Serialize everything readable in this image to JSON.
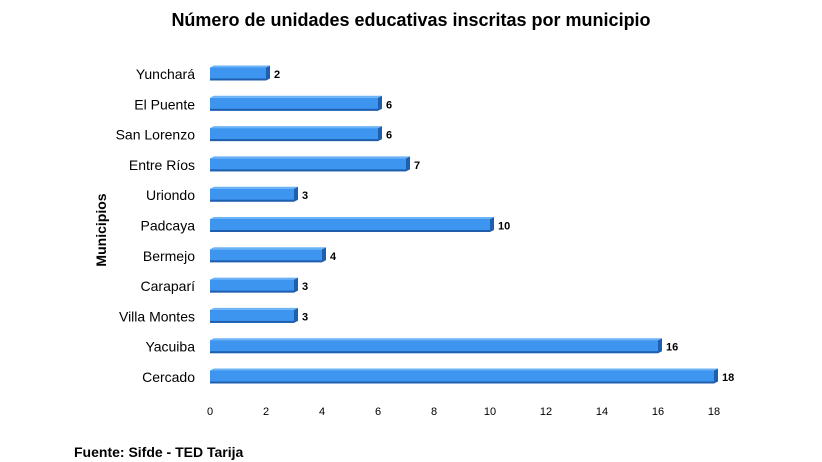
{
  "chart_data": {
    "type": "bar",
    "orientation": "horizontal",
    "title": "Número de unidades educativas inscritas por municipio",
    "xlabel": "",
    "ylabel": "Municipios",
    "categories": [
      "Yunchará",
      "El Puente",
      "San Lorenzo",
      "Entre Ríos",
      "Uriondo",
      "Padcaya",
      "Bermejo",
      "Caraparí",
      "Villa Montes",
      "Yacuiba",
      "Cercado"
    ],
    "values": [
      2,
      6,
      6,
      7,
      3,
      10,
      4,
      3,
      3,
      16,
      18
    ],
    "data_labels": [
      "2",
      "6",
      "6",
      "7",
      "3",
      "10",
      "4",
      "3",
      "3",
      "16",
      "18"
    ],
    "xlim": [
      0,
      18
    ],
    "x_ticks": [
      "0",
      "2",
      "4",
      "6",
      "8",
      "10",
      "12",
      "14",
      "16",
      "18"
    ],
    "grid": false,
    "bar_color": "#3d95f0",
    "bar_shadow_color": "#1f5fae"
  },
  "source_note": "Fuente: Sifde - TED Tarija"
}
